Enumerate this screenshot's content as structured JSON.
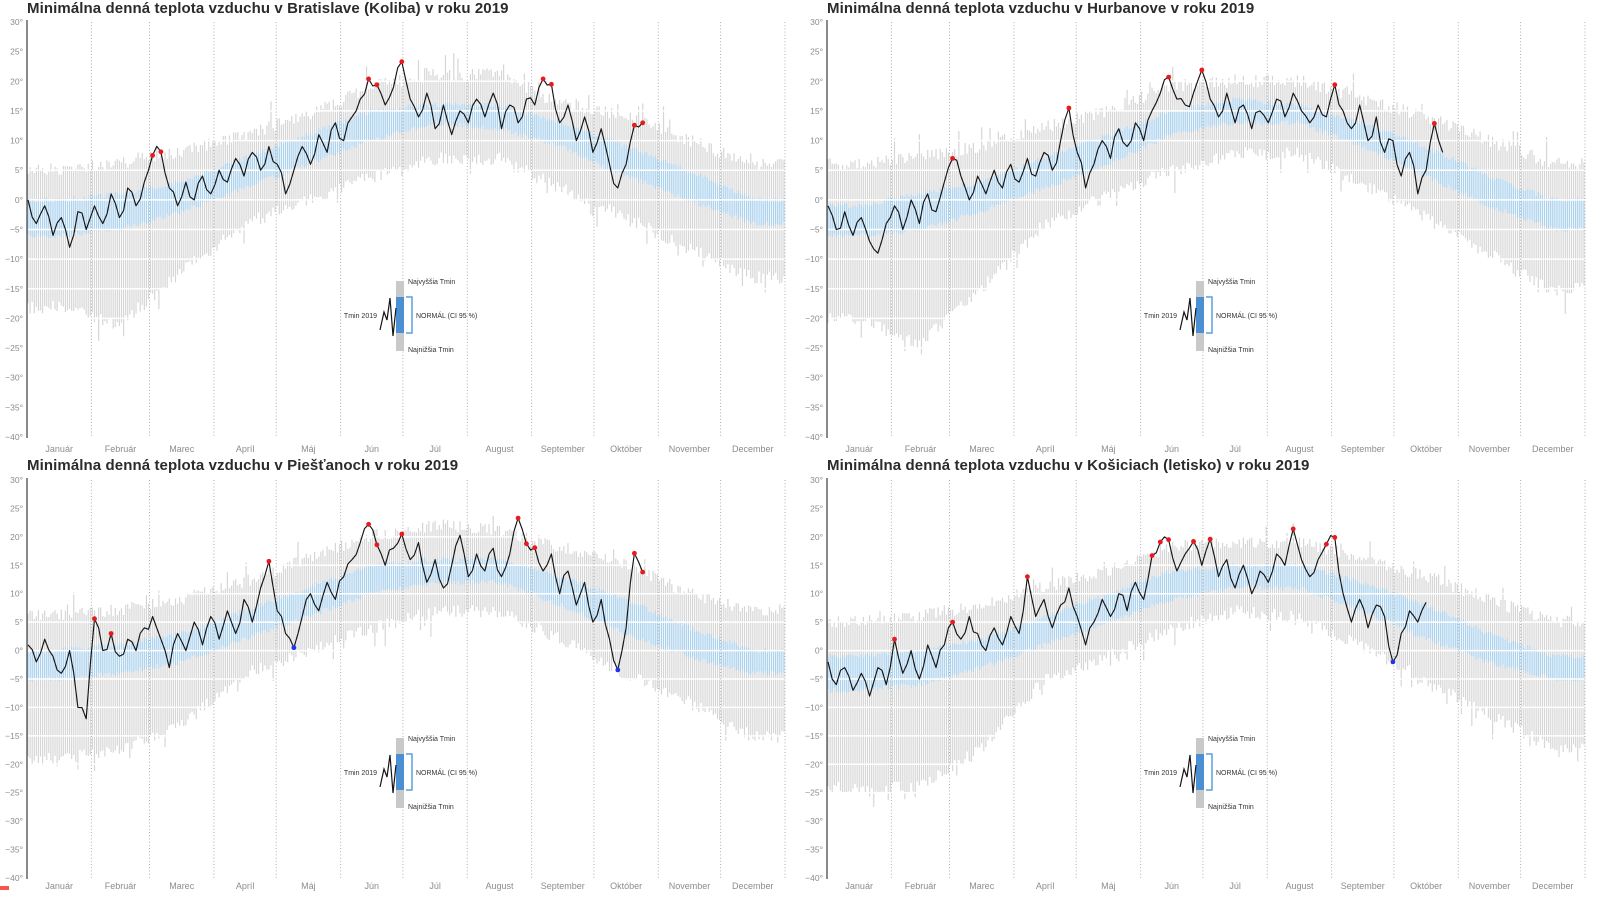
{
  "axis": {
    "months": [
      "Január",
      "Február",
      "Marec",
      "Apríl",
      "Máj",
      "Jún",
      "Júl",
      "August",
      "September",
      "Október",
      "November",
      "December"
    ],
    "month_lengths": [
      31,
      28,
      31,
      30,
      31,
      30,
      31,
      31,
      30,
      31,
      30,
      31
    ],
    "y_ticks": [
      "30°",
      "25°",
      "20°",
      "15°",
      "10°",
      "5°",
      "0°",
      "−5°",
      "−10°",
      "−15°",
      "−20°",
      "−25°",
      "−30°",
      "−35°",
      "−40°"
    ],
    "y_max": 30,
    "y_min": -40,
    "y_step": 5,
    "band_anchor_days": [
      16,
      45,
      75,
      105,
      136,
      166,
      197,
      228,
      258,
      289,
      319,
      350
    ]
  },
  "legend": {
    "highest": "Najvyššia Tmin",
    "tmin": "Tmin 2019",
    "normal": "NORMÁL (CI 95 %)",
    "lowest": "Najnižšia Tmin"
  },
  "colors": {
    "record_band": "#d6d6d6",
    "normal_band": "#aad3f2",
    "tmin_line": "#141414",
    "record_high_dot": "#e8191f",
    "record_low_dot": "#2233ee",
    "title_text": "#2b2b2b",
    "axis_text": "#8c8c8c",
    "white_gridline": "#ffffff",
    "month_gridline": "#adadad",
    "axis_line": "#4a4a4a",
    "legend_gray": "#c9c9c9",
    "legend_blue": "#4a90d2",
    "legend_bracket": "#5aa0dc",
    "legend_text": "#333333"
  },
  "chart_data": [
    {
      "type": "line",
      "title": "Minimálna denná teplota vzduchu v Bratislave (Koliba) v roku 2019",
      "station": "Bratislava (Koliba)",
      "year": "2019",
      "series": {
        "tmin_2019": {
          "day_start": 1,
          "day_step": 4,
          "values": [
            0,
            -4,
            -1,
            -6,
            -3,
            -8,
            -2,
            -5,
            -1,
            -4,
            1,
            -3,
            2,
            -1,
            3,
            7.5,
            8.1,
            2,
            -1,
            3,
            0,
            4,
            1,
            5,
            3,
            7,
            4,
            8,
            5,
            9,
            6,
            1,
            5,
            9,
            6,
            11,
            8,
            13,
            10,
            14,
            17,
            20.4,
            19.4,
            16,
            19,
            23.3,
            17,
            14,
            18,
            12,
            16,
            11,
            15,
            13,
            17,
            14,
            18,
            12,
            16,
            13,
            17,
            16,
            20.4,
            19.5,
            13,
            16,
            10,
            14,
            8,
            12,
            6,
            2,
            6,
            12.6,
            13
          ]
        },
        "normal_ci95": {
          "lo": [
            -6,
            -5,
            -2,
            2,
            6,
            10,
            13,
            12,
            9,
            4,
            0,
            -4
          ],
          "hi": [
            0,
            1,
            3,
            7,
            11,
            15,
            16,
            16,
            13,
            9,
            5,
            0
          ]
        },
        "record_range": {
          "lo": [
            -18,
            -21,
            -12,
            -4,
            0,
            4,
            7,
            7,
            2,
            -3,
            -8,
            -13
          ],
          "hi": [
            5,
            6,
            8,
            11,
            14,
            19,
            21,
            21,
            16,
            14,
            10,
            6
          ]
        }
      },
      "record_high_points": [
        [
          61,
          7.5
        ],
        [
          65,
          8.1
        ],
        [
          165,
          20.4
        ],
        [
          169,
          19.4
        ],
        [
          181,
          23.3
        ],
        [
          249,
          20.4
        ],
        [
          253,
          19.5
        ],
        [
          293,
          12.6
        ],
        [
          297,
          13
        ]
      ],
      "record_low_points": []
    },
    {
      "type": "line",
      "title": "Minimálna denná teplota vzduchu v Hurbanove v roku 2019",
      "station": "Hurbanovo",
      "year": "2019",
      "series": {
        "tmin_2019": {
          "day_start": 1,
          "day_step": 4,
          "values": [
            -1,
            -5,
            -2,
            -6,
            -3,
            -7,
            -9,
            -4,
            -1,
            -5,
            0,
            -4,
            1,
            -2,
            3,
            7,
            4,
            0,
            4,
            1,
            5,
            2,
            6,
            3,
            7,
            4,
            8,
            5,
            10,
            15.5,
            8,
            2,
            6,
            10,
            7,
            12,
            9,
            13,
            10,
            15,
            18,
            20.7,
            17,
            16,
            18,
            21.9,
            17,
            14,
            18,
            13,
            16,
            12,
            15,
            13,
            17,
            14,
            18,
            15,
            13,
            16,
            14,
            19.4,
            15,
            12,
            16,
            10,
            14,
            8,
            10,
            4,
            8,
            1,
            5,
            12.9,
            8
          ]
        },
        "normal_ci95": {
          "lo": [
            -6,
            -5,
            -2,
            2,
            6,
            11,
            13,
            13,
            9,
            4,
            -1,
            -5
          ],
          "hi": [
            -1,
            1,
            3,
            7,
            11,
            15,
            17,
            16,
            13,
            9,
            4,
            0
          ]
        },
        "record_range": {
          "lo": [
            -20,
            -24,
            -15,
            -4,
            1,
            5,
            8,
            8,
            3,
            -3,
            -9,
            -15
          ],
          "hi": [
            6,
            7,
            9,
            12,
            15,
            19,
            20,
            20,
            17,
            14,
            10,
            6
          ]
        }
      },
      "record_high_points": [
        [
          61,
          7
        ],
        [
          117,
          15.5
        ],
        [
          165,
          20.7
        ],
        [
          181,
          21.9
        ],
        [
          245,
          19.4
        ],
        [
          293,
          12.9
        ]
      ],
      "record_low_points": []
    },
    {
      "type": "line",
      "title": "Minimálna denná teplota vzduchu v Piešťanoch v roku 2019",
      "station": "Piešťany",
      "year": "2019",
      "series": {
        "tmin_2019": {
          "day_start": 1,
          "day_step": 4,
          "values": [
            1,
            -2,
            2,
            -1,
            -4,
            0,
            -10,
            -12,
            5.6,
            0,
            3,
            -1,
            2,
            0,
            4,
            6,
            2,
            -3,
            3,
            0,
            5,
            1,
            6,
            2,
            7,
            3,
            9,
            5,
            11,
            15.7,
            7,
            3,
            0.5,
            6,
            10,
            7,
            12,
            9,
            13,
            16,
            19,
            22.2,
            18.6,
            15,
            18,
            20.5,
            16,
            19,
            12,
            16,
            11,
            15,
            20.3,
            13,
            17,
            14,
            18,
            13,
            17,
            23.3,
            18.8,
            18.1,
            14,
            17,
            10,
            14,
            8,
            12,
            5,
            9,
            2,
            -3.4,
            4,
            17.1,
            13.8
          ]
        },
        "normal_ci95": {
          "lo": [
            -5,
            -4,
            -2,
            2,
            6,
            10,
            12,
            12,
            8,
            3,
            -1,
            -4
          ],
          "hi": [
            0,
            1,
            3,
            7,
            11,
            15,
            16,
            16,
            13,
            9,
            4,
            0
          ]
        },
        "record_range": {
          "lo": [
            -19,
            -17,
            -13,
            -4,
            0,
            4,
            7,
            7,
            2,
            -4,
            -9,
            -15
          ],
          "hi": [
            6,
            7,
            9,
            12,
            16,
            20,
            22,
            21,
            18,
            15,
            10,
            7
          ]
        }
      },
      "record_high_points": [
        [
          33,
          5.6
        ],
        [
          41,
          3
        ],
        [
          117,
          15.7
        ],
        [
          165,
          22.2
        ],
        [
          169,
          18.6
        ],
        [
          181,
          20.5
        ],
        [
          237,
          23.3
        ],
        [
          241,
          18.8
        ],
        [
          245,
          18.1
        ],
        [
          293,
          17.1
        ],
        [
          297,
          13.8
        ]
      ],
      "record_low_points": [
        [
          129,
          0.5
        ],
        [
          285,
          -3.4
        ]
      ]
    },
    {
      "type": "line",
      "title": "Minimálna denná teplota vzduchu v Košiciach (letisko) v roku 2019",
      "station": "Košice (letisko)",
      "year": "2019",
      "series": {
        "tmin_2019": {
          "day_start": 1,
          "day_step": 4,
          "values": [
            -2,
            -6,
            -3,
            -7,
            -4,
            -8,
            -3,
            -6,
            2,
            -4,
            0,
            -5,
            1,
            -3,
            1,
            5,
            2,
            6,
            3,
            0,
            4,
            1,
            6,
            3,
            13,
            6,
            9,
            4,
            8,
            11,
            6,
            1,
            5,
            9,
            6,
            10,
            7,
            12,
            9,
            16.7,
            19.1,
            19.5,
            14,
            17,
            19.2,
            15,
            19.6,
            13,
            16,
            11,
            15,
            10,
            14,
            12,
            17,
            15,
            21.4,
            16,
            13,
            16,
            18.7,
            19.9,
            10,
            5,
            9,
            4,
            8,
            6,
            -2,
            3,
            7,
            5,
            8.5
          ]
        },
        "normal_ci95": {
          "lo": [
            -7,
            -6,
            -3,
            1,
            5,
            9,
            11,
            11,
            7,
            2,
            -2,
            -5
          ],
          "hi": [
            -1,
            0,
            2,
            6,
            10,
            14,
            15,
            15,
            12,
            8,
            3,
            -1
          ]
        },
        "record_range": {
          "lo": [
            -24,
            -24,
            -17,
            -5,
            -1,
            4,
            7,
            6,
            1,
            -5,
            -11,
            -17
          ],
          "hi": [
            5,
            6,
            8,
            11,
            14,
            18,
            19,
            19,
            16,
            13,
            9,
            5
          ]
        }
      },
      "record_high_points": [
        [
          33,
          2
        ],
        [
          61,
          5
        ],
        [
          97,
          13
        ],
        [
          157,
          16.7
        ],
        [
          161,
          19.1
        ],
        [
          165,
          19.5
        ],
        [
          177,
          19.2
        ],
        [
          185,
          19.6
        ],
        [
          225,
          21.4
        ],
        [
          241,
          18.7
        ],
        [
          245,
          19.9
        ]
      ],
      "record_low_points": [
        [
          273,
          -2
        ]
      ]
    }
  ]
}
